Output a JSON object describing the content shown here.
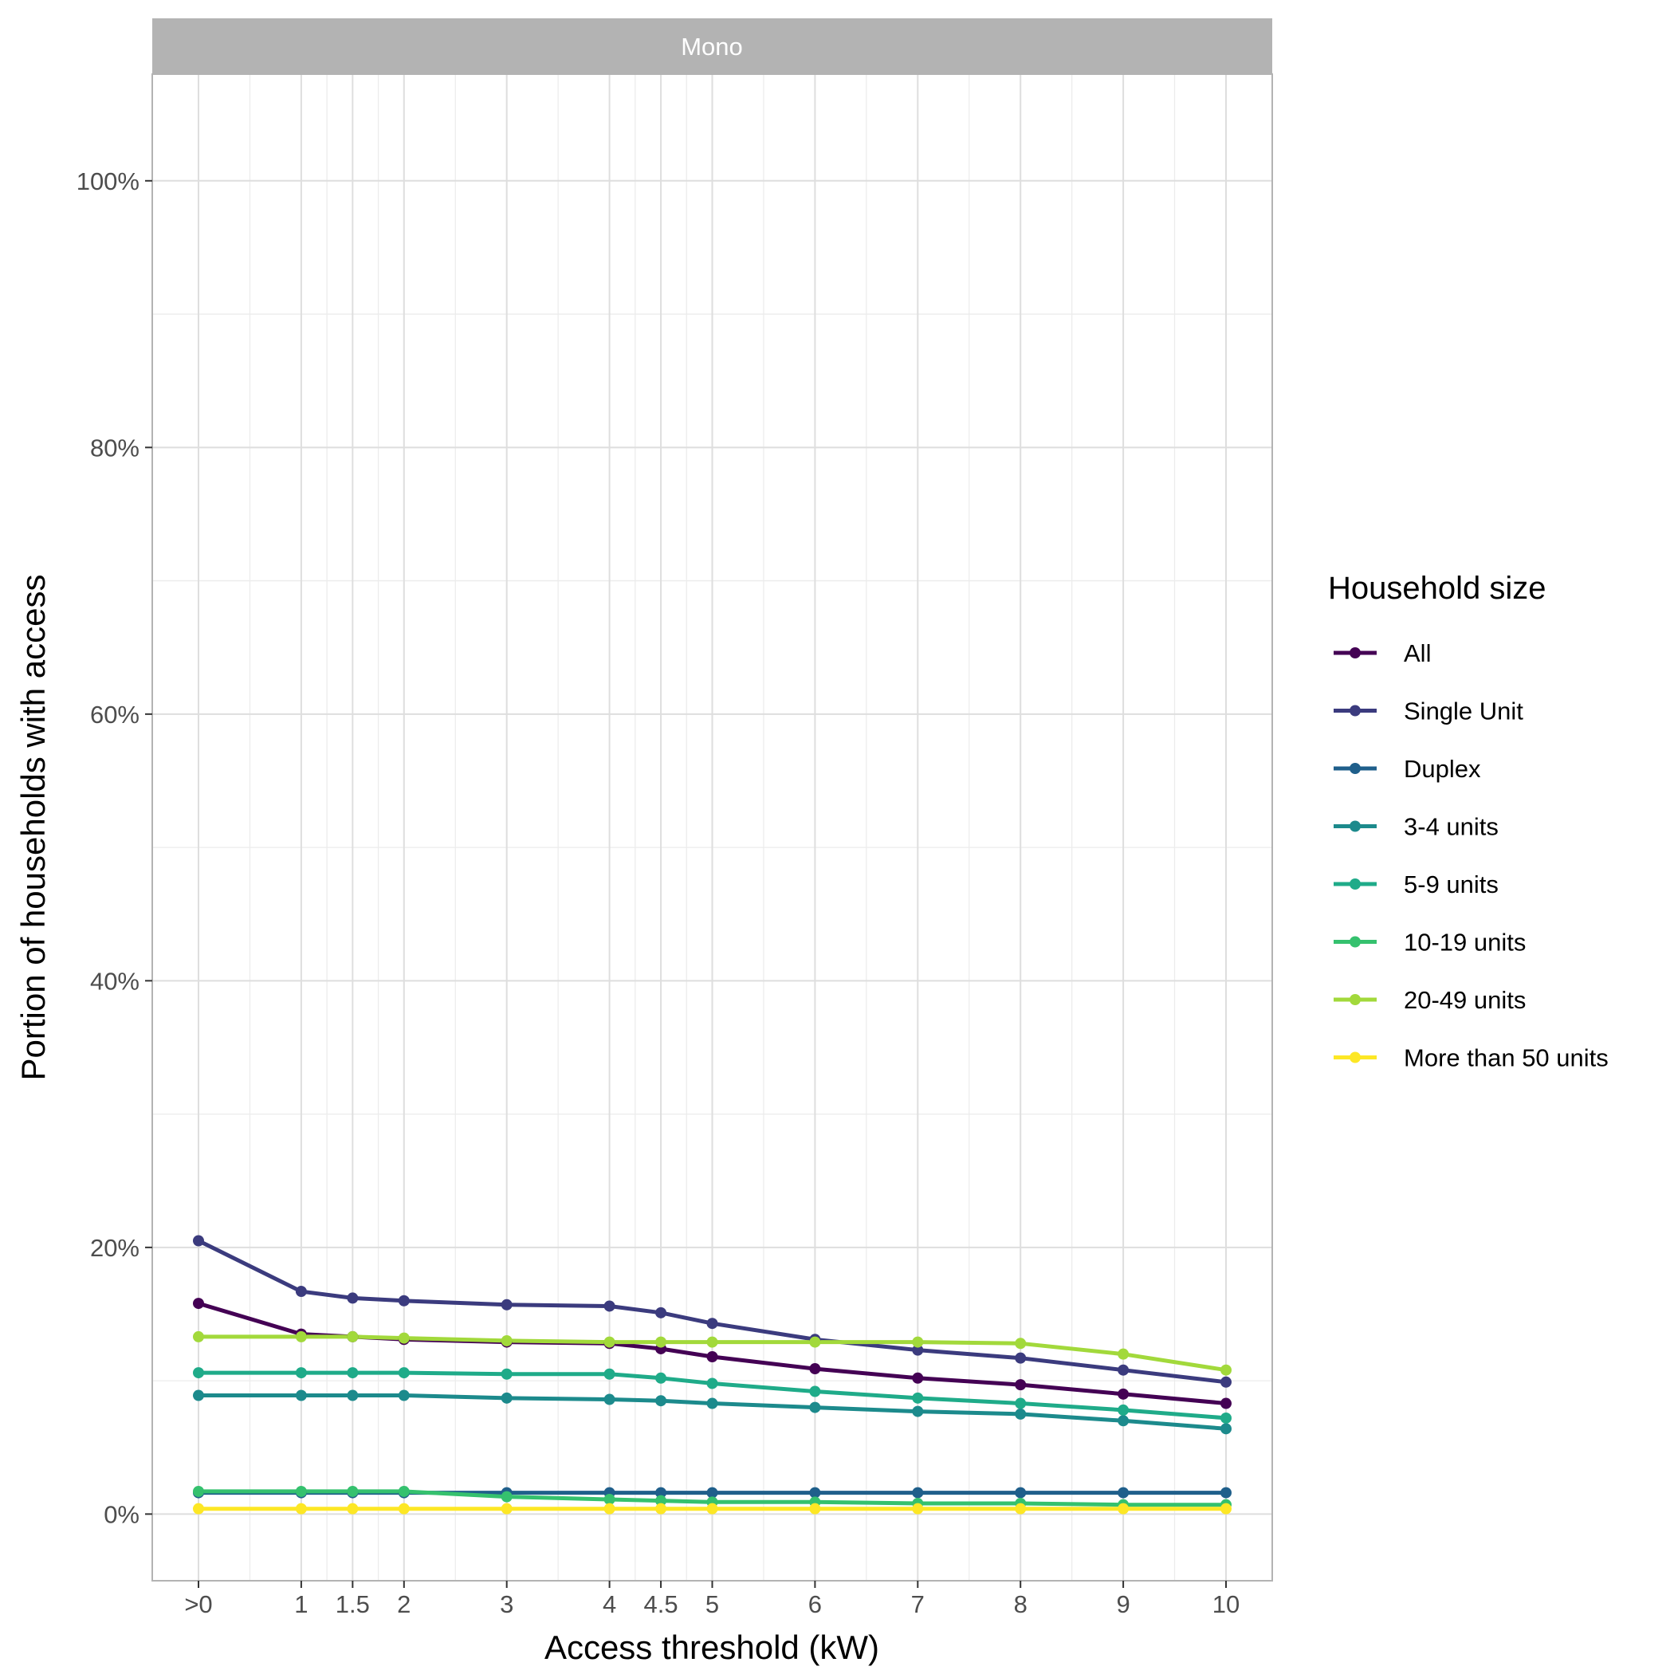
{
  "chart_data": {
    "type": "line",
    "facet": "Mono",
    "xlabel": "Access threshold (kW)",
    "ylabel": "Portion of households with access",
    "x": [
      0,
      1,
      1.5,
      2,
      3,
      4,
      4.5,
      5,
      6,
      7,
      8,
      9,
      10
    ],
    "x_ticks": [
      {
        "value": 0,
        "label": ">0"
      },
      {
        "value": 1,
        "label": "1"
      },
      {
        "value": 1.5,
        "label": "1.5"
      },
      {
        "value": 2,
        "label": "2"
      },
      {
        "value": 3,
        "label": "3"
      },
      {
        "value": 4,
        "label": "4"
      },
      {
        "value": 4.5,
        "label": "4.5"
      },
      {
        "value": 5,
        "label": "5"
      },
      {
        "value": 6,
        "label": "6"
      },
      {
        "value": 7,
        "label": "7"
      },
      {
        "value": 8,
        "label": "8"
      },
      {
        "value": 9,
        "label": "9"
      },
      {
        "value": 10,
        "label": "10"
      }
    ],
    "y_ticks": [
      {
        "value": 0,
        "label": "0%"
      },
      {
        "value": 20,
        "label": "20%"
      },
      {
        "value": 40,
        "label": "40%"
      },
      {
        "value": 60,
        "label": "60%"
      },
      {
        "value": 80,
        "label": "80%"
      },
      {
        "value": 100,
        "label": "100%"
      }
    ],
    "xlim": [
      -0.45,
      10.45
    ],
    "ylim": [
      -5,
      108
    ],
    "grid": true,
    "legend_title": "Household size",
    "legend_position": "right",
    "series": [
      {
        "name": "All",
        "color": "#440154",
        "values": [
          15.8,
          13.5,
          13.3,
          13.1,
          12.9,
          12.8,
          12.4,
          11.8,
          10.9,
          10.2,
          9.7,
          9.0,
          8.3
        ]
      },
      {
        "name": "Single Unit",
        "color": "#3B3B7E",
        "values": [
          20.5,
          16.7,
          16.2,
          16.0,
          15.7,
          15.6,
          15.1,
          14.3,
          13.1,
          12.3,
          11.7,
          10.8,
          9.9
        ]
      },
      {
        "name": "Duplex",
        "color": "#1F5F8B",
        "values": [
          1.6,
          1.6,
          1.6,
          1.6,
          1.6,
          1.6,
          1.6,
          1.6,
          1.6,
          1.6,
          1.6,
          1.6,
          1.6
        ]
      },
      {
        "name": "3-4 units",
        "color": "#1C8A8C",
        "values": [
          8.9,
          8.9,
          8.9,
          8.9,
          8.7,
          8.6,
          8.5,
          8.3,
          8.0,
          7.7,
          7.5,
          7.0,
          6.4
        ]
      },
      {
        "name": "5-9 units",
        "color": "#1FAB89",
        "values": [
          10.6,
          10.6,
          10.6,
          10.6,
          10.5,
          10.5,
          10.2,
          9.8,
          9.2,
          8.7,
          8.3,
          7.8,
          7.2
        ]
      },
      {
        "name": "10-19 units",
        "color": "#35C16E",
        "values": [
          1.7,
          1.7,
          1.7,
          1.7,
          1.3,
          1.1,
          1.0,
          0.9,
          0.9,
          0.8,
          0.8,
          0.7,
          0.7
        ]
      },
      {
        "name": "20-49 units",
        "color": "#A2D93B",
        "values": [
          13.3,
          13.3,
          13.3,
          13.2,
          13.0,
          12.9,
          12.9,
          12.9,
          12.9,
          12.9,
          12.8,
          12.0,
          10.8
        ]
      },
      {
        "name": "More than 50 units",
        "color": "#FDE725",
        "values": [
          0.4,
          0.4,
          0.4,
          0.4,
          0.4,
          0.4,
          0.4,
          0.4,
          0.4,
          0.4,
          0.4,
          0.4,
          0.4
        ]
      }
    ]
  }
}
